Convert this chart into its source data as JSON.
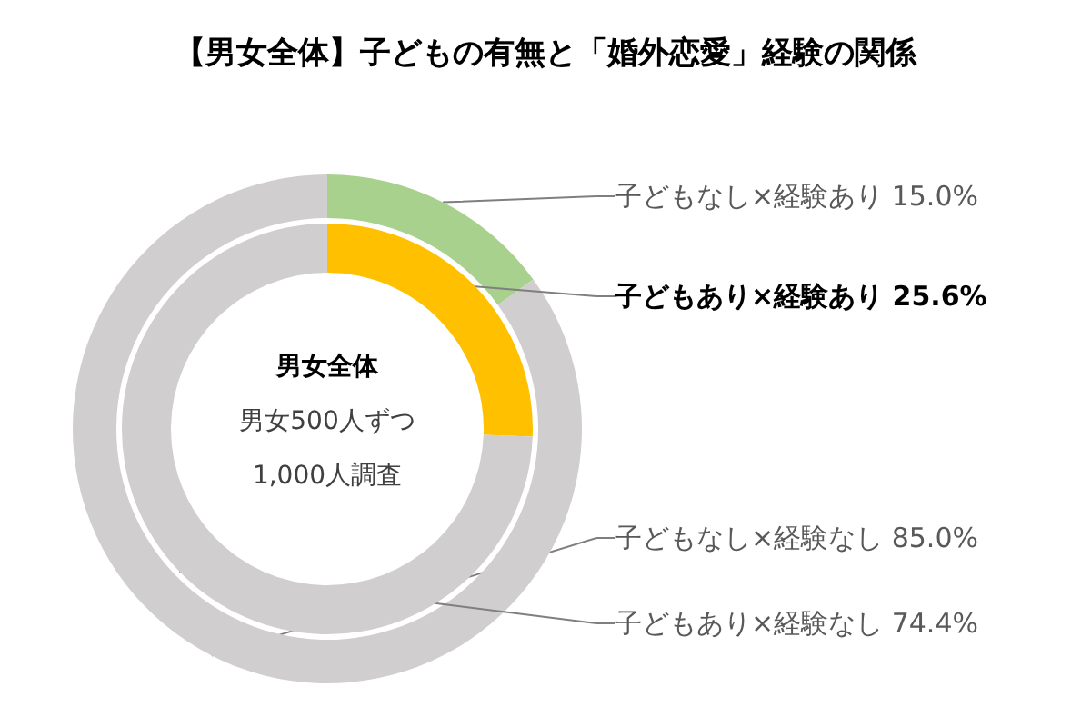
{
  "chart_data": [
    {
      "type": "donut",
      "title": "【男女全体】子どもの有無と「婚外恋愛」経験の関係",
      "categories": [
        "子どもなし×経験あり",
        "子どもなし×経験なし"
      ],
      "values": [
        15.0,
        85.0
      ],
      "colors": [
        "#a9d18e",
        "#d0cece"
      ],
      "value_labels": [
        "15.0%",
        "85.0%"
      ],
      "legend": false
    },
    {
      "type": "donut",
      "categories": [
        "子どもあり×経験あり",
        "子どもあり×経験なし"
      ],
      "values": [
        25.6,
        74.4
      ],
      "colors": [
        "#ffc000",
        "#d0cece"
      ],
      "value_labels": [
        "25.6%",
        "74.4%"
      ],
      "annotations": [
        "男女全体",
        "男女500人ずつ",
        "1,000人調査"
      ],
      "legend": false
    }
  ]
}
